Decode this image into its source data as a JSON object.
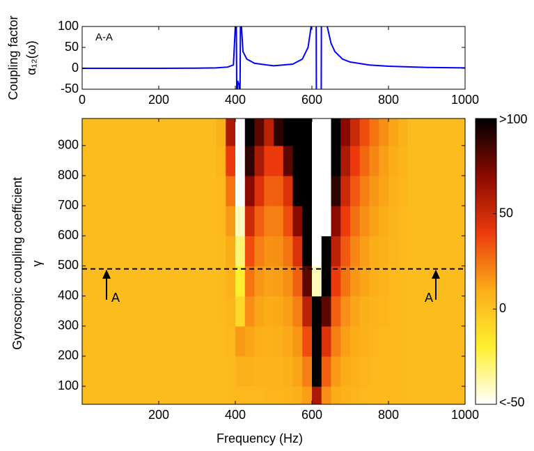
{
  "chart_data": [
    {
      "type": "line",
      "ylabel": [
        "Coupling factor",
        "α₁₂(ω)"
      ],
      "annotation": "A-A",
      "x": [
        0,
        100,
        200,
        300,
        350,
        380,
        395,
        400,
        402,
        404,
        406,
        410,
        412,
        414,
        416,
        420,
        430,
        450,
        500,
        550,
        575,
        590,
        598,
        603,
        611,
        612,
        624,
        625,
        635,
        640,
        650,
        660,
        680,
        700,
        750,
        800,
        900,
        1000
      ],
      "values": [
        0,
        0,
        0,
        0.5,
        1,
        3,
        8,
        100,
        200,
        -100,
        -30,
        -40,
        -100,
        200,
        100,
        40,
        22,
        12,
        6,
        10,
        22,
        50,
        100,
        200,
        200,
        -200,
        -200,
        200,
        200,
        100,
        60,
        40,
        22,
        15,
        8,
        5,
        2,
        1
      ],
      "color": "#0000ff",
      "xlim": [
        0,
        1000
      ],
      "ylim": [
        -50,
        100
      ],
      "xticks": [
        0,
        200,
        400,
        600,
        800,
        1000
      ],
      "yticks": [
        -50,
        0,
        50,
        100
      ]
    },
    {
      "type": "heatmap",
      "xlabel": "Frequency (Hz)",
      "ylabel": [
        "Gyroscopic coupling coefficient",
        "γ"
      ],
      "xbins": [
        0,
        25,
        50,
        75,
        100,
        125,
        150,
        175,
        200,
        225,
        250,
        275,
        300,
        325,
        350,
        375,
        400,
        425,
        450,
        475,
        500,
        525,
        550,
        575,
        600,
        625,
        650,
        675,
        700,
        725,
        750,
        775,
        800,
        825,
        850,
        875,
        900,
        925,
        950,
        975,
        1000
      ],
      "ybins": [
        0,
        100,
        200,
        300,
        400,
        500,
        600,
        700,
        800,
        900,
        1000
      ],
      "z": [
        [
          3,
          3,
          3,
          3,
          3,
          3,
          3,
          3,
          3,
          3,
          3,
          3,
          3,
          3,
          3,
          4,
          5,
          5,
          5,
          6,
          6,
          7,
          9,
          14,
          60,
          18,
          10,
          8,
          6,
          5,
          4,
          4,
          4,
          4,
          3,
          3,
          3,
          3,
          3,
          3
        ],
        [
          3,
          3,
          3,
          3,
          3,
          3,
          3,
          3,
          3,
          3,
          3,
          3,
          3,
          3,
          3,
          4,
          8,
          8,
          7,
          7,
          7,
          9,
          12,
          22,
          100,
          30,
          15,
          10,
          8,
          6,
          5,
          4,
          4,
          4,
          3,
          3,
          3,
          3,
          3,
          3
        ],
        [
          3,
          3,
          3,
          3,
          3,
          3,
          3,
          3,
          3,
          3,
          3,
          3,
          3,
          3,
          3,
          5,
          15,
          12,
          9,
          8,
          9,
          11,
          16,
          35,
          100,
          45,
          22,
          14,
          10,
          8,
          6,
          5,
          4,
          4,
          3,
          3,
          3,
          3,
          3,
          3
        ],
        [
          3,
          3,
          3,
          3,
          3,
          3,
          3,
          3,
          3,
          3,
          3,
          3,
          3,
          3,
          4,
          6,
          -10,
          18,
          12,
          10,
          11,
          14,
          22,
          55,
          100,
          80,
          30,
          18,
          12,
          9,
          7,
          6,
          5,
          4,
          3,
          3,
          3,
          3,
          3,
          3
        ],
        [
          3,
          3,
          3,
          3,
          3,
          3,
          3,
          3,
          3,
          3,
          3,
          3,
          3,
          3,
          4,
          8,
          -20,
          25,
          16,
          13,
          14,
          18,
          30,
          80,
          -40,
          100,
          40,
          25,
          16,
          12,
          9,
          7,
          5,
          4,
          3,
          3,
          3,
          3,
          3,
          3
        ],
        [
          3,
          3,
          3,
          3,
          3,
          3,
          3,
          3,
          3,
          3,
          3,
          3,
          3,
          3,
          4,
          10,
          -30,
          35,
          22,
          17,
          18,
          25,
          45,
          100,
          -50,
          100,
          55,
          32,
          20,
          14,
          10,
          8,
          6,
          5,
          3,
          3,
          3,
          3,
          3,
          3
        ],
        [
          3,
          3,
          3,
          3,
          3,
          3,
          3,
          3,
          3,
          3,
          3,
          3,
          3,
          3,
          5,
          15,
          -40,
          50,
          30,
          22,
          22,
          35,
          70,
          100,
          -50,
          -50,
          70,
          40,
          26,
          18,
          13,
          10,
          7,
          5,
          3,
          3,
          3,
          3,
          3,
          3
        ],
        [
          3,
          3,
          3,
          3,
          3,
          3,
          3,
          3,
          3,
          3,
          3,
          3,
          3,
          3,
          5,
          25,
          -50,
          70,
          45,
          30,
          30,
          45,
          100,
          100,
          -50,
          -50,
          90,
          50,
          32,
          22,
          16,
          12,
          8,
          6,
          3,
          3,
          3,
          3,
          3,
          3
        ],
        [
          3,
          3,
          3,
          3,
          3,
          3,
          3,
          3,
          3,
          3,
          3,
          3,
          3,
          3,
          6,
          40,
          -50,
          90,
          60,
          40,
          40,
          80,
          100,
          100,
          -50,
          -50,
          100,
          60,
          40,
          28,
          20,
          14,
          10,
          7,
          3,
          3,
          3,
          3,
          3,
          3
        ],
        [
          3,
          3,
          3,
          3,
          3,
          3,
          3,
          3,
          3,
          3,
          3,
          3,
          3,
          3,
          8,
          60,
          -50,
          100,
          80,
          55,
          90,
          100,
          100,
          100,
          -50,
          -50,
          100,
          70,
          50,
          35,
          25,
          18,
          12,
          8,
          3,
          3,
          3,
          3,
          3,
          3
        ]
      ],
      "xlim": [
        0,
        1000
      ],
      "ylim": [
        40,
        990
      ],
      "xticks": [
        200,
        400,
        600,
        800,
        1000
      ],
      "yticks": [
        100,
        200,
        300,
        400,
        500,
        600,
        700,
        800,
        900
      ],
      "zlim": [
        -50,
        100
      ],
      "colorscale": [
        "#ffffff",
        "#ffef30",
        "#fbad18",
        "#ec3a0c",
        "#8a0a00",
        "#000000"
      ],
      "colorbar_ticks": [
        {
          "value": -50,
          "label": "<-50"
        },
        0,
        50,
        {
          "value": 100,
          "label": ">100"
        }
      ],
      "section": {
        "y": 490,
        "labels": [
          "A",
          "A"
        ]
      }
    }
  ]
}
